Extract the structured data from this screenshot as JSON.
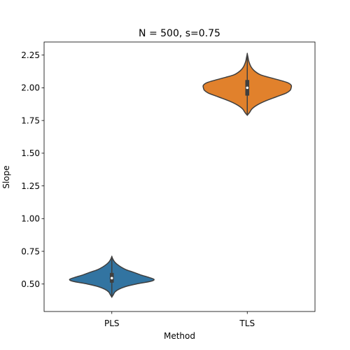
{
  "chart_data": {
    "type": "violin",
    "title": "N = 500, s=0.75",
    "xlabel": "Method",
    "ylabel": "Slope",
    "ylim": [
      0.29,
      2.35
    ],
    "yticks": [
      "0.50",
      "0.75",
      "1.00",
      "1.25",
      "1.50",
      "1.75",
      "2.00",
      "2.25"
    ],
    "grid": false,
    "categories": [
      "PLS",
      "TLS"
    ],
    "series": [
      {
        "category": "PLS",
        "color": "#3274a1",
        "min": 0.4,
        "q1": 0.51,
        "median": 0.545,
        "q3": 0.585,
        "max": 0.71,
        "density": [
          [
            0.4,
            0.0
          ],
          [
            0.42,
            0.03
          ],
          [
            0.44,
            0.06
          ],
          [
            0.46,
            0.13
          ],
          [
            0.48,
            0.25
          ],
          [
            0.5,
            0.45
          ],
          [
            0.52,
            0.71
          ],
          [
            0.535,
            0.78
          ],
          [
            0.55,
            0.69
          ],
          [
            0.57,
            0.53
          ],
          [
            0.59,
            0.4
          ],
          [
            0.61,
            0.26
          ],
          [
            0.63,
            0.17
          ],
          [
            0.65,
            0.1
          ],
          [
            0.67,
            0.05
          ],
          [
            0.69,
            0.02
          ],
          [
            0.71,
            0.0
          ]
        ]
      },
      {
        "category": "TLS",
        "color": "#e1812c",
        "min": 1.79,
        "q1": 1.94,
        "median": 2.0,
        "q3": 2.06,
        "max": 2.26,
        "density": [
          [
            1.79,
            0.0
          ],
          [
            1.81,
            0.04
          ],
          [
            1.84,
            0.09
          ],
          [
            1.87,
            0.19
          ],
          [
            1.9,
            0.34
          ],
          [
            1.93,
            0.53
          ],
          [
            1.96,
            0.72
          ],
          [
            1.98,
            0.79
          ],
          [
            2.0,
            0.81
          ],
          [
            2.02,
            0.81
          ],
          [
            2.04,
            0.74
          ],
          [
            2.06,
            0.58
          ],
          [
            2.08,
            0.4
          ],
          [
            2.1,
            0.24
          ],
          [
            2.13,
            0.13
          ],
          [
            2.16,
            0.07
          ],
          [
            2.2,
            0.03
          ],
          [
            2.23,
            0.015
          ],
          [
            2.26,
            0.0
          ]
        ]
      }
    ]
  }
}
